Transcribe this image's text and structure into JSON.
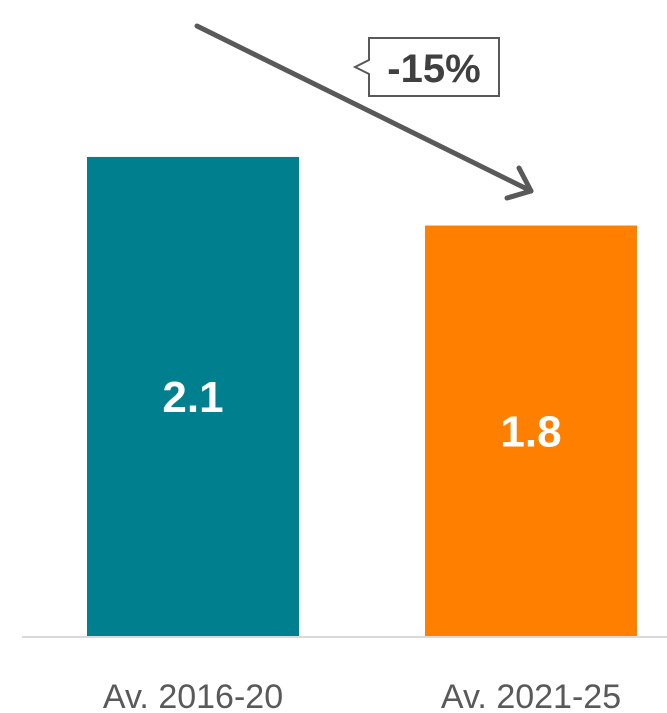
{
  "chart_data": {
    "type": "bar",
    "categories": [
      "Av. 2016-20",
      "Av. 2021-25"
    ],
    "values": [
      2.1,
      1.8
    ],
    "data_labels": [
      "2.1",
      "1.8"
    ],
    "colors": [
      "#00808F",
      "#FF8000"
    ],
    "ylim": [
      0,
      2.6
    ],
    "title": "",
    "xlabel": "",
    "ylabel": "",
    "grid": false,
    "legend": "none",
    "annotation": {
      "text": "-15%",
      "from_category": "Av. 2016-20",
      "to_category": "Av. 2021-25",
      "arrow_color": "#595959"
    },
    "axis_color": "#D9D9D9"
  }
}
